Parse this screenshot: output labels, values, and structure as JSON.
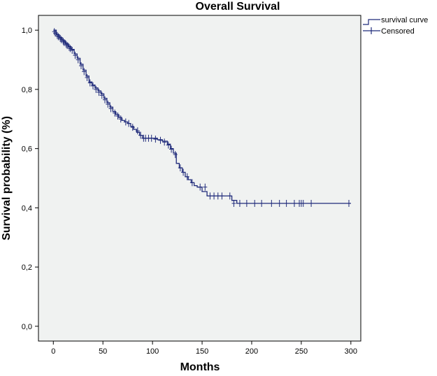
{
  "chart_data": {
    "type": "line",
    "title": "Overall Survival",
    "xlabel": "Months",
    "ylabel": "Survival probability (%)",
    "xlim": [
      -15,
      310
    ],
    "ylim": [
      -0.05,
      1.05
    ],
    "x_ticks": [
      0,
      50,
      100,
      150,
      200,
      250,
      300
    ],
    "x_tick_labels": [
      "0",
      "50",
      "100",
      "150",
      "200",
      "250",
      "300"
    ],
    "y_ticks": [
      0,
      0.2,
      0.4,
      0.6,
      0.8,
      1.0
    ],
    "y_tick_labels": [
      "0,0",
      "0,2",
      "0,4",
      "0,6",
      "0,8",
      "1,0"
    ],
    "grid": false,
    "legend_position": "top-right-outside",
    "colors": {
      "series": "#1f2a7a",
      "plot_background": "#f0f2f1",
      "axis": "#000000"
    },
    "series": [
      {
        "name": "survival curve",
        "step": true,
        "x": [
          0,
          3,
          6,
          9,
          12,
          15,
          18,
          21,
          24,
          27,
          30,
          33,
          36,
          39,
          42,
          45,
          48,
          51,
          54,
          57,
          60,
          63,
          66,
          69,
          72,
          75,
          78,
          81,
          84,
          87,
          90,
          95,
          100,
          105,
          110,
          115,
          118,
          121,
          124,
          127,
          130,
          133,
          136,
          139,
          142,
          145,
          150,
          155,
          160,
          170,
          180,
          185,
          300
        ],
        "y": [
          1.0,
          0.985,
          0.975,
          0.965,
          0.955,
          0.945,
          0.935,
          0.92,
          0.905,
          0.885,
          0.865,
          0.845,
          0.825,
          0.815,
          0.805,
          0.795,
          0.785,
          0.77,
          0.755,
          0.74,
          0.725,
          0.715,
          0.705,
          0.695,
          0.69,
          0.685,
          0.675,
          0.665,
          0.655,
          0.645,
          0.635,
          0.635,
          0.635,
          0.63,
          0.625,
          0.615,
          0.6,
          0.585,
          0.55,
          0.535,
          0.52,
          0.505,
          0.495,
          0.485,
          0.475,
          0.47,
          0.455,
          0.44,
          0.44,
          0.44,
          0.425,
          0.415,
          0.415
        ]
      },
      {
        "name": "Censored",
        "x": [
          1,
          2,
          4,
          5,
          7,
          8,
          10,
          11,
          13,
          14,
          16,
          17,
          19,
          22,
          25,
          28,
          31,
          34,
          37,
          40,
          43,
          46,
          49,
          52,
          55,
          58,
          62,
          65,
          68,
          73,
          76,
          80,
          85,
          88,
          91,
          93,
          96,
          99,
          103,
          108,
          112,
          116,
          119,
          123,
          128,
          131,
          135,
          140,
          148,
          153,
          158,
          162,
          166,
          170,
          178,
          182,
          188,
          195,
          203,
          210,
          220,
          228,
          235,
          243,
          248,
          250,
          252,
          260,
          298
        ],
        "y": [
          0.995,
          0.99,
          0.982,
          0.978,
          0.972,
          0.968,
          0.962,
          0.958,
          0.952,
          0.948,
          0.942,
          0.938,
          0.932,
          0.915,
          0.9,
          0.88,
          0.86,
          0.84,
          0.822,
          0.812,
          0.8,
          0.79,
          0.78,
          0.765,
          0.75,
          0.735,
          0.72,
          0.71,
          0.7,
          0.69,
          0.685,
          0.672,
          0.66,
          0.645,
          0.635,
          0.635,
          0.635,
          0.635,
          0.632,
          0.628,
          0.622,
          0.612,
          0.598,
          0.58,
          0.535,
          0.52,
          0.505,
          0.485,
          0.47,
          0.47,
          0.44,
          0.44,
          0.44,
          0.44,
          0.44,
          0.415,
          0.415,
          0.415,
          0.415,
          0.415,
          0.415,
          0.415,
          0.415,
          0.415,
          0.415,
          0.415,
          0.415,
          0.415,
          0.415
        ]
      }
    ]
  }
}
